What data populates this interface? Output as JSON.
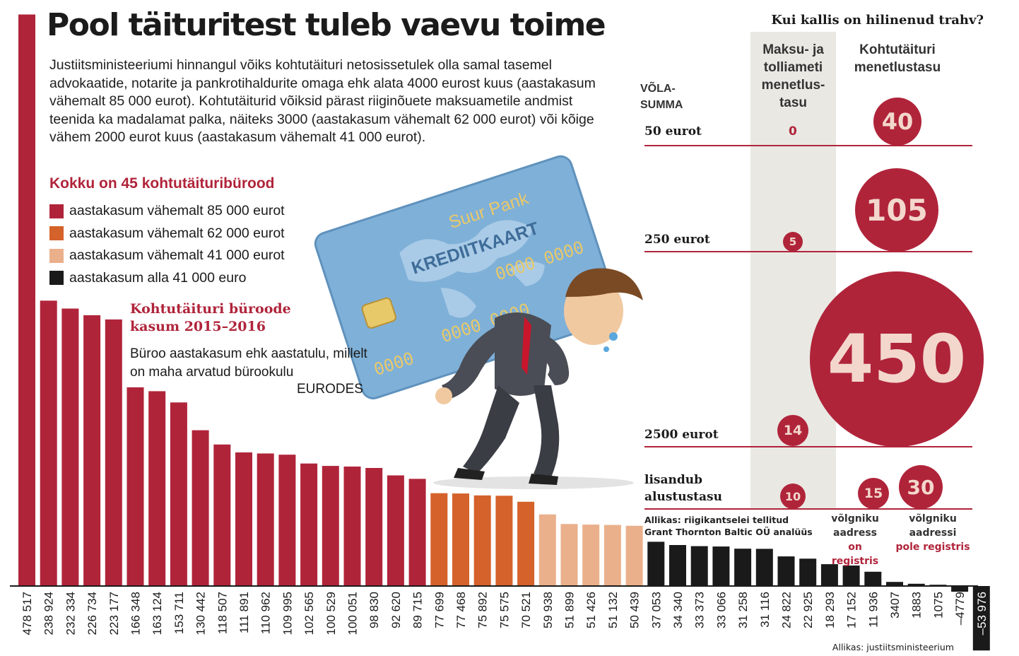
{
  "header": {
    "title": "Pool täituritest tuleb vaevu toime",
    "intro": "Justiitsministeeriumi hinnangul võiks kohtutäituri netosissetulek olla samal tasemel advokaatide, notarite ja pankrotihaldurite omaga ehk alata 4000 eurost kuus (aastakasum vähemalt 85 000 eurot). Kohtutäiturid võiksid pärast riiginõuete maksuametile andmist teenida ka madalamat palka, näiteks 3000 (aastakasum vähemalt 62 000 eurot) või kõige vähem 2000 eurot kuus (aastakasum vähemalt 41 000 eurot)."
  },
  "legend": {
    "title": "Kokku on 45 kohtutäituribürood",
    "items": [
      {
        "label": "aastakasum vähemalt 85 000 eurot",
        "color": "#b0243a"
      },
      {
        "label": "aastakasum vähemalt 62 000 eurot",
        "color": "#d4622a"
      },
      {
        "label": "aastakasum vähemalt 41 000 eurot",
        "color": "#eab08b"
      },
      {
        "label": "aastakasum alla 41 000 euro",
        "color": "#1a1a1a"
      }
    ]
  },
  "illustration": {
    "card_bank": "Suur Pank",
    "card_type": "KREDIITKAART",
    "card_number_1": "0000 0000",
    "card_number_2": "0000 0000",
    "card_number_3": "0000"
  },
  "chart_data": {
    "type": "bar",
    "title": "Kohtutäituri büroode kasum 2015–2016",
    "subtitle": "Büroo aastakasum ehk aastatulu, millelt on maha arvatud bürookulu",
    "unit": "EURODES",
    "source": "Allikas: justiitsministeerium",
    "ylim": [
      -60000,
      480000
    ],
    "categories": [
      "478 517",
      "238 924",
      "232 334",
      "226 734",
      "223 177",
      "166 348",
      "163 124",
      "153 711",
      "130 442",
      "118 507",
      "111 891",
      "110 962",
      "109 995",
      "102 565",
      "100 529",
      "100 051",
      "98 830",
      "92 620",
      "89 715",
      "77 699",
      "77 468",
      "75 892",
      "75 575",
      "70 521",
      "59 938",
      "51 899",
      "51 426",
      "51 132",
      "50 439",
      "37 053",
      "34 340",
      "33 373",
      "33 066",
      "31 258",
      "31 116",
      "24 822",
      "22 925",
      "18 293",
      "17 152",
      "11 936",
      "3407",
      "1883",
      "1075",
      "–4779",
      "–53 976"
    ],
    "values": [
      478517,
      238924,
      232334,
      226734,
      223177,
      166348,
      163124,
      153711,
      130442,
      118507,
      111891,
      110962,
      109995,
      102565,
      100529,
      100051,
      98830,
      92620,
      89715,
      77699,
      77468,
      75892,
      75575,
      70521,
      59938,
      51899,
      51426,
      51132,
      50439,
      37053,
      34340,
      33373,
      33066,
      31258,
      31116,
      24822,
      22925,
      18293,
      17152,
      11936,
      3407,
      1883,
      1075,
      -4779,
      -53976
    ],
    "colors": {
      "at_least_85000": "#b0243a",
      "at_least_62000": "#d4622a",
      "at_least_41000": "#eab08b",
      "below_41000": "#1a1a1a"
    }
  },
  "fines": {
    "title": "Kui kallis on hilinenud trahv?",
    "col_debt": "VÕLA-\nSUMMA",
    "col_tax": "Maksu- ja\ntolliameti\nmenetlus-\ntasu",
    "col_bailiff": "Kohtutäituri\nmenetlustasu",
    "rows": [
      {
        "label": "50 eurot",
        "tax": "0",
        "bailiff": 40
      },
      {
        "label": "250 eurot",
        "tax": "5",
        "bailiff": 105
      },
      {
        "label": "2500 eurot",
        "tax": "14",
        "bailiff": 450
      },
      {
        "label": "lisandub\nalustustasu",
        "tax": "10",
        "bailiff_registered": 15,
        "bailiff_unregistered": 30
      }
    ],
    "note_registered_1": "võlgniku\naadress",
    "note_registered_2": "on registris",
    "note_unregistered_1": "võlgniku\naadressi",
    "note_unregistered_2": "pole registris",
    "source": "Allikas: riigikantselei tellitud\nGrant Thornton Baltic OÜ analüüs"
  }
}
